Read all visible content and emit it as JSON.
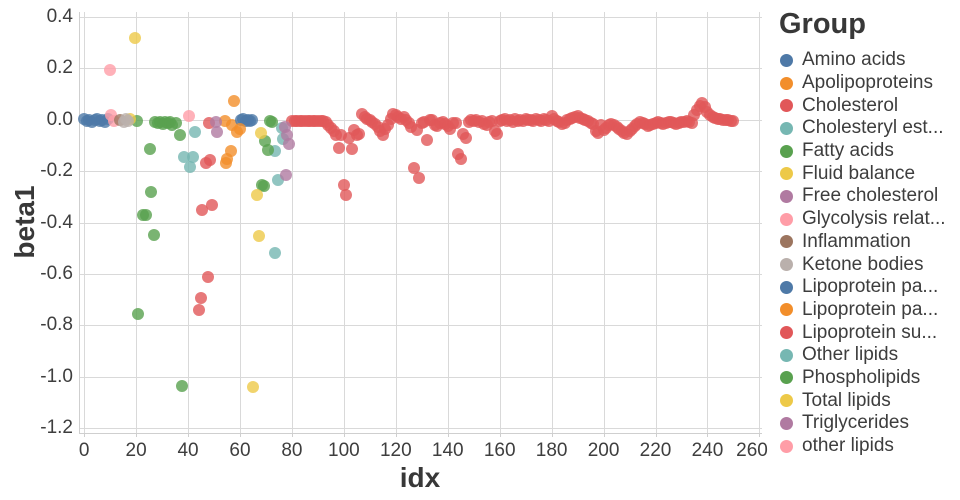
{
  "chart_data": {
    "type": "scatter",
    "xlabel": "idx",
    "ylabel": "beta1",
    "legend_title": "Group",
    "legend_position": "right",
    "grid": true,
    "grid_color": "#d9d9d9",
    "axis_color": "#cfcfcf",
    "text_color": "#3e3e3e",
    "xlim": [
      -2,
      261
    ],
    "ylim": [
      -1.22,
      0.42
    ],
    "x_ticks": [
      0,
      20,
      40,
      60,
      80,
      100,
      120,
      140,
      160,
      180,
      200,
      220,
      240,
      260
    ],
    "y_ticks": [
      {
        "v": 0.4,
        "label": "0.4"
      },
      {
        "v": 0.2,
        "label": "0.2"
      },
      {
        "v": 0.0,
        "label": "0.0"
      },
      {
        "v": -0.2,
        "label": "-0.2"
      },
      {
        "v": -0.4,
        "label": "-0.4"
      },
      {
        "v": -0.6,
        "label": "-0.6"
      },
      {
        "v": -0.8,
        "label": "-0.8"
      },
      {
        "v": -1.0,
        "label": "-1.0"
      },
      {
        "v": -1.2,
        "label": "-1.2"
      }
    ],
    "groups": [
      {
        "name": "Amino acids",
        "color": "#4e79a7",
        "points": [
          [
            0,
            0.004
          ],
          [
            1,
            -0.004
          ],
          [
            2,
            0.0
          ],
          [
            3,
            -0.01
          ],
          [
            4,
            -0.002
          ],
          [
            5,
            0.005
          ],
          [
            6,
            -0.006
          ],
          [
            7,
            0.0
          ],
          [
            8,
            -0.008
          ],
          [
            9,
            0.002
          ]
        ]
      },
      {
        "name": "Apolipoproteins",
        "color": "#f28e2b",
        "points": [
          [
            54.2,
            -0.004
          ],
          [
            54.6,
            -0.167
          ],
          [
            55,
            -0.151
          ],
          [
            56.5,
            -0.12
          ],
          [
            56.8,
            -0.019
          ]
        ]
      },
      {
        "name": "Cholesterol",
        "color": "#e15759",
        "points": [
          [
            44.2,
            -0.74
          ],
          [
            45,
            -0.694
          ],
          [
            47.7,
            -0.612
          ],
          [
            45.3,
            -0.353
          ],
          [
            49.2,
            -0.333
          ],
          [
            46.9,
            -0.167
          ],
          [
            48.5,
            -0.158
          ],
          [
            48.2,
            -0.014
          ]
        ]
      },
      {
        "name": "Cholesteryl est...",
        "color": "#76b7b2",
        "points": [
          [
            38.5,
            -0.143
          ],
          [
            41.9,
            -0.143
          ],
          [
            40.8,
            -0.182
          ],
          [
            42.7,
            -0.046
          ]
        ]
      },
      {
        "name": "Fatty acids",
        "color": "#59a14f",
        "points": [
          [
            20.5,
            -0.004
          ],
          [
            20.8,
            -0.756
          ],
          [
            22.7,
            -0.372
          ],
          [
            23.8,
            -0.372
          ],
          [
            25.3,
            -0.115
          ],
          [
            25.7,
            -0.282
          ],
          [
            26.9,
            -0.45
          ],
          [
            27.3,
            -0.01
          ],
          [
            28.3,
            -0.012
          ],
          [
            29.2,
            -0.008
          ],
          [
            30.2,
            -0.015
          ],
          [
            31.2,
            -0.01
          ],
          [
            32.1,
            -0.012
          ],
          [
            33.1,
            -0.008
          ],
          [
            34,
            -0.02
          ],
          [
            35.5,
            -0.012
          ],
          [
            36.8,
            -0.058
          ],
          [
            37.7,
            -1.035
          ]
        ]
      },
      {
        "name": "Fluid balance",
        "color": "#edc948",
        "points": [
          [
            17.5,
            0.005
          ],
          [
            19.7,
            0.319
          ]
        ]
      },
      {
        "name": "Free cholesterol",
        "color": "#b07aa1",
        "points": [
          [
            50.7,
            -0.008
          ],
          [
            51.3,
            -0.049
          ]
        ]
      },
      {
        "name": "Glycolysis relat...",
        "color": "#ff9da7",
        "points": [
          [
            9.9,
            0.195
          ],
          [
            10.4,
            0.018
          ],
          [
            11.5,
            -0.005
          ]
        ]
      },
      {
        "name": "Inflammation",
        "color": "#9c755f",
        "points": [
          [
            13.9,
            -0.002
          ]
        ]
      },
      {
        "name": "Ketone bodies",
        "color": "#bab0ac",
        "points": [
          [
            15.2,
            -0.008
          ],
          [
            16.2,
            0.002
          ],
          [
            16.8,
            -0.005
          ]
        ]
      },
      {
        "name": "Lipoprotein pa...",
        "color": "#4e79a7",
        "points": [
          [
            60.5,
            -0.002
          ],
          [
            61.3,
            0.003
          ],
          [
            62.2,
            -0.005
          ],
          [
            63.1,
            -0.001
          ],
          [
            64,
            -0.004
          ],
          [
            64.7,
            -0.002
          ]
        ]
      },
      {
        "name": "Lipoprotein pa...",
        "color": "#f28e2b",
        "points": [
          [
            57.8,
            0.074
          ],
          [
            58.7,
            -0.047
          ],
          [
            60,
            -0.034
          ]
        ]
      },
      {
        "name": "Lipoprotein su...",
        "color": "#e15759",
        "points": [
          [
            80,
            -0.004
          ],
          [
            81,
            -0.006
          ],
          [
            82,
            -0.003
          ],
          [
            83,
            -0.005
          ],
          [
            84,
            -0.004
          ],
          [
            85,
            -0.006
          ],
          [
            86,
            -0.003
          ],
          [
            87,
            -0.005
          ],
          [
            88,
            -0.004
          ],
          [
            89,
            -0.006
          ],
          [
            90,
            -0.004
          ],
          [
            91,
            -0.005
          ],
          [
            92,
            -0.006
          ],
          [
            93,
            -0.01
          ],
          [
            94,
            -0.02
          ],
          [
            95,
            -0.032
          ],
          [
            96,
            -0.045
          ],
          [
            97,
            -0.06
          ],
          [
            98,
            -0.111
          ],
          [
            99,
            -0.058
          ],
          [
            100,
            -0.253
          ],
          [
            101,
            -0.292
          ],
          [
            102,
            -0.07
          ],
          [
            103,
            -0.115
          ],
          [
            104,
            -0.039
          ],
          [
            105,
            -0.06
          ],
          [
            106,
            -0.054
          ],
          [
            107,
            0.024
          ],
          [
            108,
            0.012
          ],
          [
            109,
            0.005
          ],
          [
            110,
            0
          ],
          [
            111,
            -0.008
          ],
          [
            112,
            -0.015
          ],
          [
            113,
            -0.027
          ],
          [
            114,
            -0.045
          ],
          [
            115,
            -0.059
          ],
          [
            116,
            -0.034
          ],
          [
            117,
            -0.021
          ],
          [
            118,
            0.005
          ],
          [
            119,
            0.024
          ],
          [
            120,
            0.018
          ],
          [
            121,
            0.01
          ],
          [
            122,
            0.005
          ],
          [
            123,
            0.012
          ],
          [
            124,
            0
          ],
          [
            125,
            -0.014
          ],
          [
            126,
            -0.027
          ],
          [
            127,
            -0.189
          ],
          [
            128,
            -0.04
          ],
          [
            129,
            -0.228
          ],
          [
            130,
            -0.014
          ],
          [
            131,
            -0.007
          ],
          [
            132,
            -0.079
          ],
          [
            133,
            0
          ],
          [
            134,
            0
          ],
          [
            135,
            -0.021
          ],
          [
            136,
            -0.025
          ],
          [
            137,
            -0.014
          ],
          [
            138,
            -0.01
          ],
          [
            139,
            -0.017
          ],
          [
            140,
            -0.025
          ],
          [
            141,
            -0.037
          ],
          [
            142,
            -0.013
          ],
          [
            143,
            -0.013
          ],
          [
            144,
            -0.134
          ],
          [
            145,
            -0.153
          ],
          [
            146,
            -0.056
          ],
          [
            147,
            -0.07
          ],
          [
            148,
            -0.01
          ],
          [
            149,
            0
          ],
          [
            150,
            -0.005
          ],
          [
            151,
            0
          ],
          [
            152,
            -0.01
          ],
          [
            153,
            -0.005
          ],
          [
            154,
            -0.015
          ],
          [
            155,
            -0.02
          ],
          [
            156,
            -0.01
          ],
          [
            157,
            -0.005
          ],
          [
            158,
            -0.045
          ],
          [
            159,
            -0.056
          ],
          [
            160,
            -0.006
          ],
          [
            161,
            0
          ],
          [
            162,
            0.005
          ],
          [
            163,
            -0.005
          ],
          [
            164,
            0
          ],
          [
            165,
            -0.008
          ],
          [
            166,
            0.003
          ],
          [
            167,
            -0.003
          ],
          [
            168,
            0
          ],
          [
            169,
            -0.005
          ],
          [
            170,
            0.002
          ],
          [
            171,
            -0.002
          ],
          [
            172,
            0
          ],
          [
            173,
            -0.006
          ],
          [
            174,
            0.004
          ],
          [
            175,
            0
          ],
          [
            176,
            -0.004
          ],
          [
            177,
            0.002
          ],
          [
            178,
            0
          ],
          [
            179,
            -0.003
          ],
          [
            180,
            0.014
          ],
          [
            181,
            0.005
          ],
          [
            182,
            -0.006
          ],
          [
            183,
            -0.01
          ],
          [
            184,
            -0.017
          ],
          [
            185,
            -0.013
          ],
          [
            186,
            0
          ],
          [
            187,
            0.003
          ],
          [
            188,
            0.006
          ],
          [
            189,
            0.01
          ],
          [
            190,
            0.014
          ],
          [
            191,
            0.008
          ],
          [
            192,
            0.002
          ],
          [
            193,
            -0.002
          ],
          [
            194,
            -0.006
          ],
          [
            195,
            -0.012
          ],
          [
            196,
            -0.017
          ],
          [
            197,
            -0.045
          ],
          [
            198,
            -0.052
          ],
          [
            199,
            -0.02
          ],
          [
            200,
            -0.04
          ],
          [
            201,
            -0.03
          ],
          [
            202,
            -0.02
          ],
          [
            203,
            -0.015
          ],
          [
            204,
            -0.02
          ],
          [
            205,
            -0.028
          ],
          [
            206,
            -0.035
          ],
          [
            207,
            -0.045
          ],
          [
            208,
            -0.05
          ],
          [
            209,
            -0.054
          ],
          [
            210,
            -0.045
          ],
          [
            211,
            -0.035
          ],
          [
            212,
            -0.025
          ],
          [
            213,
            -0.015
          ],
          [
            214,
            -0.01
          ],
          [
            215,
            -0.012
          ],
          [
            216,
            -0.018
          ],
          [
            217,
            -0.024
          ],
          [
            218,
            -0.02
          ],
          [
            219,
            -0.015
          ],
          [
            220,
            -0.012
          ],
          [
            221,
            -0.01
          ],
          [
            222,
            -0.013
          ],
          [
            223,
            -0.016
          ],
          [
            224,
            -0.012
          ],
          [
            225,
            -0.008
          ],
          [
            226,
            -0.01
          ],
          [
            227,
            -0.013
          ],
          [
            228,
            -0.015
          ],
          [
            229,
            -0.012
          ],
          [
            230,
            -0.008
          ],
          [
            231,
            -0.01
          ],
          [
            232,
            -0.006
          ],
          [
            233,
            -0.01
          ],
          [
            234,
            -0.014
          ],
          [
            235,
            0.02
          ],
          [
            236,
            0.039
          ],
          [
            237,
            0.055
          ],
          [
            238,
            0.066
          ],
          [
            239,
            0.05
          ],
          [
            240,
            0.031
          ],
          [
            241,
            0.019
          ],
          [
            242,
            0.012
          ],
          [
            243,
            0.008
          ],
          [
            244,
            0.004
          ],
          [
            245,
            0.002
          ],
          [
            246,
            0.001
          ],
          [
            247,
            0
          ],
          [
            248,
            -0.002
          ],
          [
            249,
            -0.004
          ],
          [
            250,
            -0.005
          ]
        ]
      },
      {
        "name": "Other lipids",
        "color": "#76b7b2",
        "points": [
          [
            73.3,
            -0.518
          ],
          [
            73.5,
            -0.12
          ],
          [
            74.7,
            -0.234
          ],
          [
            76,
            -0.03
          ],
          [
            76.4,
            -0.075
          ]
        ]
      },
      {
        "name": "Phospholipids",
        "color": "#59a14f",
        "points": [
          [
            68.3,
            -0.252
          ],
          [
            69.2,
            -0.259
          ],
          [
            69.6,
            -0.081
          ],
          [
            70.9,
            -0.117
          ],
          [
            71.4,
            -0.004
          ],
          [
            72.4,
            -0.01
          ]
        ]
      },
      {
        "name": "Total lipids",
        "color": "#edc948",
        "points": [
          [
            65,
            -1.039
          ],
          [
            66.5,
            -0.292
          ],
          [
            67.2,
            -0.453
          ],
          [
            67.9,
            -0.05
          ]
        ]
      },
      {
        "name": "Triglycerides",
        "color": "#b07aa1",
        "points": [
          [
            77.3,
            -0.027
          ],
          [
            78.2,
            -0.06
          ],
          [
            78.8,
            -0.095
          ],
          [
            77.6,
            -0.215
          ]
        ]
      },
      {
        "name": "other lipids",
        "color": "#ff9da7",
        "points": [
          [
            40.2,
            0.013
          ]
        ]
      }
    ]
  }
}
